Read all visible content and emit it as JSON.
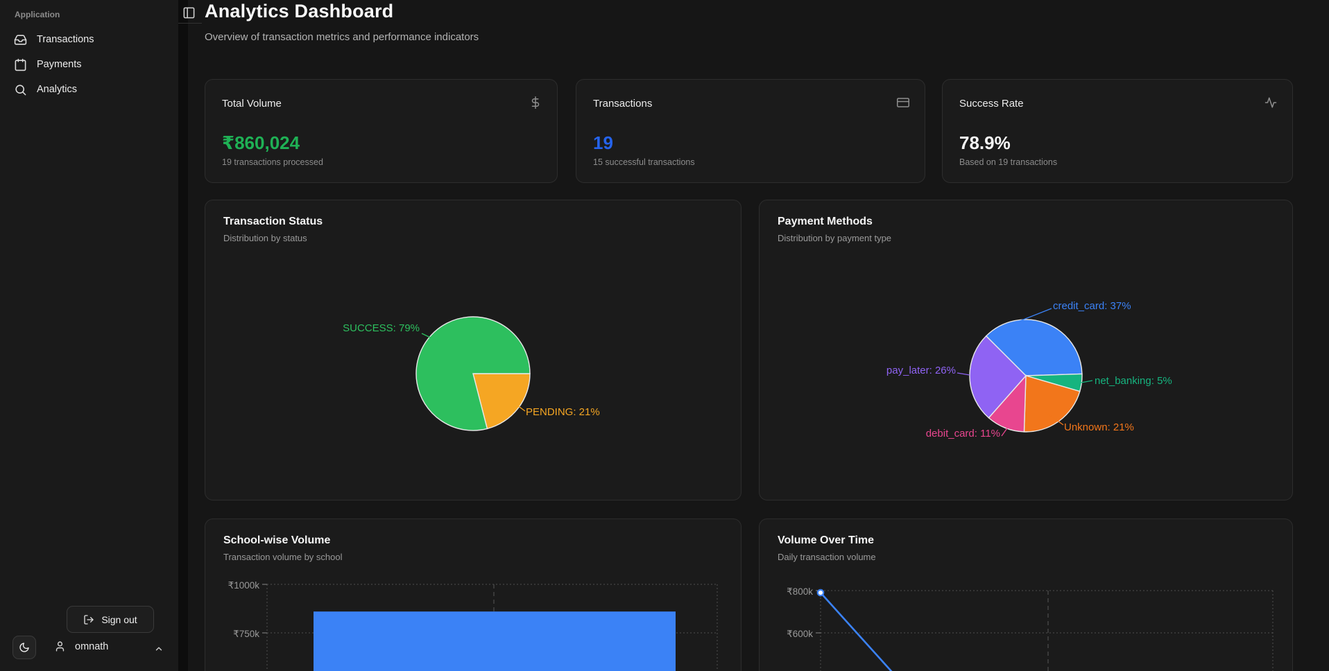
{
  "app": {
    "title": "Analytics Dashboard",
    "subtitle": "Overview of transaction metrics and performance indicators"
  },
  "sidebar": {
    "section_label": "Application",
    "items": [
      {
        "label": "Transactions",
        "icon": "inbox-icon"
      },
      {
        "label": "Payments",
        "icon": "calendar-icon"
      },
      {
        "label": "Analytics",
        "icon": "search-icon"
      }
    ],
    "sign_out_label": "Sign out",
    "user_name": "omnath"
  },
  "stat_cards": [
    {
      "title": "Total Volume",
      "value": "₹860,024",
      "subtitle": "19 transactions processed",
      "value_color": "#1fb155",
      "icon": "dollar-icon"
    },
    {
      "title": "Transactions",
      "value": "19",
      "subtitle": "15 successful transactions",
      "value_color": "#2563eb",
      "icon": "credit-card-icon"
    },
    {
      "title": "Success Rate",
      "value": "78.9%",
      "subtitle": "Based on 19 transactions",
      "value_color": "#f5f5f5",
      "icon": "activity-icon"
    }
  ],
  "chart_data": [
    {
      "type": "pie",
      "title": "Transaction Status",
      "subtitle": "Distribution by status",
      "start_angle_deg": 90,
      "slices": [
        {
          "name": "PENDING",
          "pct": 21,
          "color": "#f5a623",
          "label": "PENDING: 21%"
        },
        {
          "name": "SUCCESS",
          "pct": 79,
          "color": "#2dbf5e",
          "label": "SUCCESS: 79%"
        }
      ]
    },
    {
      "type": "pie",
      "title": "Payment Methods",
      "subtitle": "Distribution by payment type",
      "start_angle_deg": -45,
      "slices": [
        {
          "name": "credit_card",
          "pct": 37,
          "color": "#3b82f6",
          "label": "credit_card: 37%"
        },
        {
          "name": "net_banking",
          "pct": 5,
          "color": "#16b47f",
          "label": "net_banking: 5%"
        },
        {
          "name": "Unknown",
          "pct": 21,
          "color": "#f2761b",
          "label": "Unknown: 21%"
        },
        {
          "name": "debit_card",
          "pct": 11,
          "color": "#e8468f",
          "label": "debit_card: 11%"
        },
        {
          "name": "pay_later",
          "pct": 26,
          "color": "#8f63f3",
          "label": "pay_later: 26%"
        }
      ]
    },
    {
      "type": "bar",
      "title": "School-wise Volume",
      "subtitle": "Transaction volume by school",
      "yticks": [
        "₹1000k",
        "₹750k"
      ],
      "values": [
        860000
      ],
      "bar_color": "#3b82f6",
      "note": "single bar, value estimated from axis; x-axis labels cut off below viewport"
    },
    {
      "type": "line",
      "title": "Volume Over Time",
      "subtitle": "Daily transaction volume",
      "yticks": [
        "₹800k",
        "₹600k"
      ],
      "points": [
        {
          "y": 790000
        }
      ],
      "line_color": "#3b82f6",
      "note": "series starts near ₹790k and declines steeply past the visible area"
    }
  ]
}
